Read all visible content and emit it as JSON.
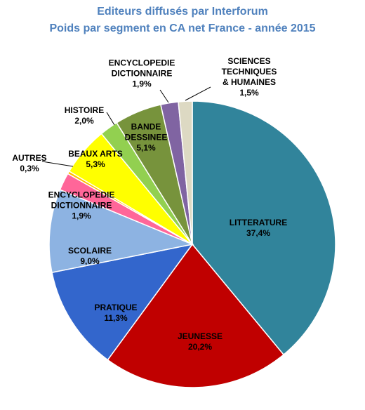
{
  "chart_data": {
    "type": "pie",
    "title": "Editeurs diffusés par Interforum",
    "subtitle": "Poids par segment en CA net France - année 2015",
    "categories": [
      "LITTERATURE",
      "JEUNESSE",
      "PRATIQUE",
      "SCOLAIRE",
      "ENCYCLOPEDIE\nDICTIONNAIRE",
      "AUTRES",
      "BEAUX ARTS",
      "HISTOIRE",
      "BANDE\nDESSINEE",
      "ENCYCLOPEDIE\nDICTIONNAIRE",
      "SCIENCES\nTECHNIQUES\n& HUMAINES"
    ],
    "values": [
      37.4,
      20.2,
      11.3,
      9.0,
      1.9,
      0.3,
      5.3,
      2.0,
      5.1,
      1.9,
      1.5
    ],
    "value_labels": [
      "37,4%",
      "20,2%",
      "11,3%",
      "9,0%",
      "1,9%",
      "0,3%",
      "5,3%",
      "2,0%",
      "5,1%",
      "1,9%",
      "1,5%"
    ],
    "colors": [
      "#31849b",
      "#c00000",
      "#3366cc",
      "#8db3e2",
      "#ff6699",
      "#ffc000",
      "#ffff00",
      "#92d050",
      "#77933c",
      "#8064a2",
      "#ddd9c3"
    ]
  }
}
